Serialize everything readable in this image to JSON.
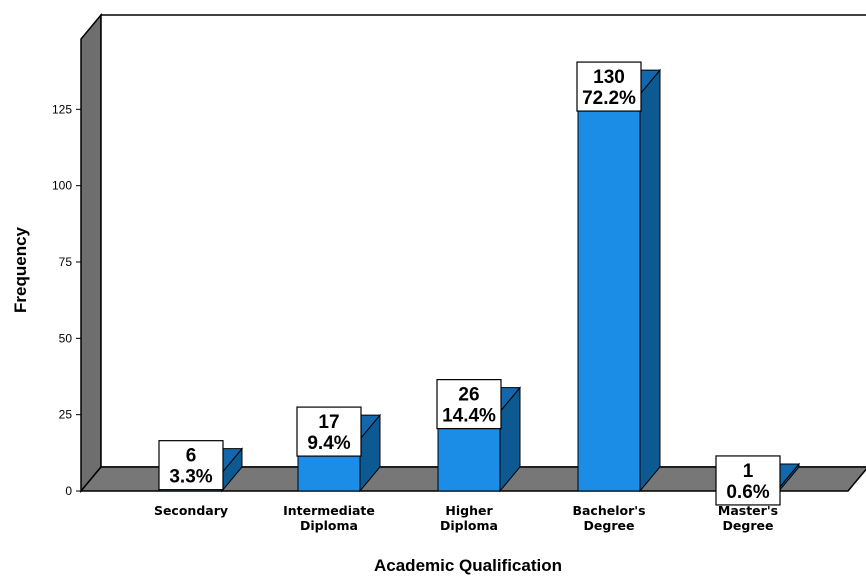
{
  "chart_data": {
    "type": "bar",
    "xlabel": "Academic Qualification",
    "ylabel": "Frequency",
    "ylim": [
      0,
      150
    ],
    "yticks": [
      "0",
      "25",
      "50",
      "75",
      "100",
      "125"
    ],
    "categories": [
      [
        "Secondary"
      ],
      [
        "Intermediate",
        "Diploma"
      ],
      [
        "Higher",
        "Diploma"
      ],
      [
        "Bachelor's",
        "Degree"
      ],
      [
        "Master's",
        "Degree"
      ]
    ],
    "values": [
      6,
      17,
      26,
      130,
      1
    ],
    "percent_labels": [
      "3.3%",
      "9.4%",
      "14.4%",
      "72.2%",
      "0.6%"
    ],
    "count_labels": [
      "6",
      "17",
      "26",
      "130",
      "1"
    ],
    "grid": false,
    "style": "3d",
    "colors": {
      "bar_front": "#1c8de6",
      "bar_side": "#0d5a92",
      "bar_top": "#1368ad",
      "wall": "#ffffff",
      "floor": "#777777",
      "side_wall": "#6e6e6e"
    }
  }
}
